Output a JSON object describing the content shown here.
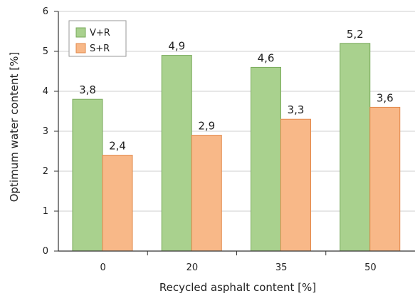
{
  "chart_data": {
    "type": "bar",
    "categories": [
      "0",
      "20",
      "35",
      "50"
    ],
    "series": [
      {
        "name": "V+R",
        "values": [
          3.8,
          4.9,
          4.6,
          5.2
        ],
        "labels": [
          "3,8",
          "4,9",
          "4,6",
          "5,2"
        ],
        "color": "#a9d18e",
        "stroke": "#78a95a"
      },
      {
        "name": "S+R",
        "values": [
          2.4,
          2.9,
          3.3,
          3.6
        ],
        "labels": [
          "2,4",
          "2,9",
          "3,3",
          "3,6"
        ],
        "color": "#f8b888",
        "stroke": "#e2884a"
      }
    ],
    "xlabel": "Recycled asphalt content [%]",
    "ylabel": "Optimum water content [%]",
    "ylim": [
      0,
      6
    ],
    "yticks": [
      "0",
      "1",
      "2",
      "3",
      "4",
      "5",
      "6"
    ],
    "grid": true,
    "legend": "top-left"
  }
}
